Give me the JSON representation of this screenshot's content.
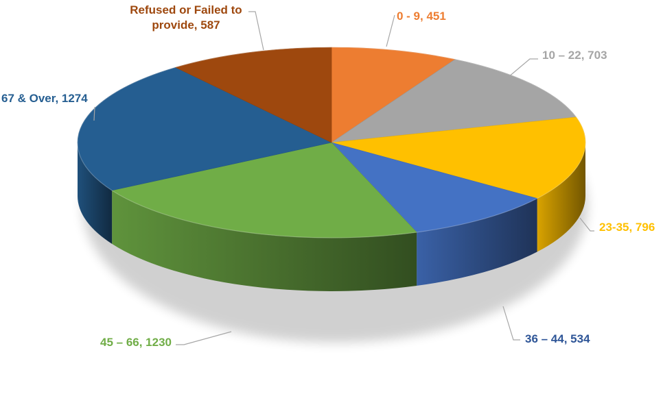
{
  "chart_data": {
    "type": "pie",
    "title": "",
    "three_d": true,
    "legend": "none",
    "slices": [
      {
        "label": "0 - 9",
        "value": 451,
        "color": "#ED7D31"
      },
      {
        "label": "10 – 22",
        "value": 703,
        "color": "#A5A5A5"
      },
      {
        "label": "23-35",
        "value": 796,
        "color": "#FFC000"
      },
      {
        "label": "36 – 44",
        "value": 534,
        "color": "#4472C4"
      },
      {
        "label": "45 – 66",
        "value": 1230,
        "color": "#70AD47"
      },
      {
        "label": "67 & Over",
        "value": 1274,
        "color": "#255E91"
      },
      {
        "label": "Refused or Failed to provide",
        "value": 587,
        "color": "#9E480E"
      }
    ],
    "data_labels": [
      {
        "lines": [
          "0 - 9, 451"
        ]
      },
      {
        "lines": [
          "10 – 22, 703"
        ]
      },
      {
        "lines": [
          "23-35, 796"
        ]
      },
      {
        "lines": [
          "36 – 44, 534"
        ]
      },
      {
        "lines": [
          "45 – 66, 1230"
        ]
      },
      {
        "lines": [
          "67 & Over, 1274"
        ]
      },
      {
        "lines": [
          "Refused or Failed to",
          "provide, 587"
        ]
      }
    ]
  }
}
